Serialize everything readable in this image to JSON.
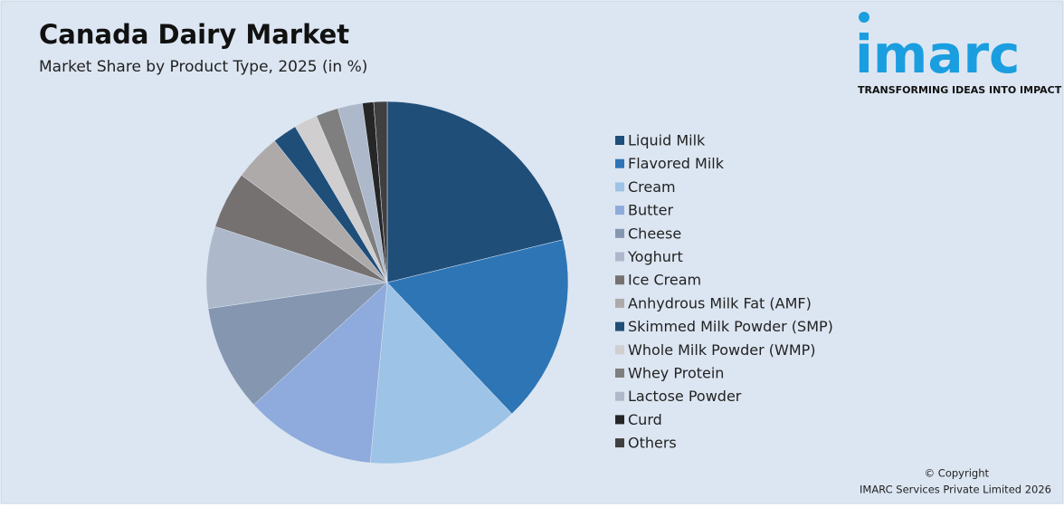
{
  "chart_data": {
    "type": "pie",
    "title": "Canada Dairy Market",
    "subtitle": "Market Share by Product Type, 2025 (in %)",
    "categories": [
      "Liquid Milk",
      "Flavored Milk",
      "Cream",
      "Butter",
      "Cheese",
      "Yoghurt",
      "Ice Cream",
      "Anhydrous Milk Fat (AMF)",
      "Skimmed Milk Powder (SMP)",
      "Whole Milk Powder (WMP)",
      "Whey Protein",
      "Lactose Powder",
      "Curd",
      "Others"
    ],
    "values": [
      21.2,
      16.7,
      13.6,
      11.7,
      9.5,
      7.3,
      5.1,
      4.2,
      2.2,
      2.1,
      2.0,
      2.2,
      1.0,
      1.2
    ],
    "colors": [
      "#1f4e79",
      "#2e75b6",
      "#9dc3e6",
      "#8faadc",
      "#8496b0",
      "#adb9ca",
      "#767171",
      "#aeaaaa",
      "#1f4e79",
      "#d0cece",
      "#7f7f7f",
      "#adb9ca",
      "#262626",
      "#404040"
    ],
    "legend": "right"
  },
  "logo": {
    "name": "imarc",
    "tagline": "TRANSFORMING IDEAS INTO IMPACT"
  },
  "footer": {
    "copyright": "© Copyright",
    "company": "IMARC Services Private Limited 2026"
  }
}
